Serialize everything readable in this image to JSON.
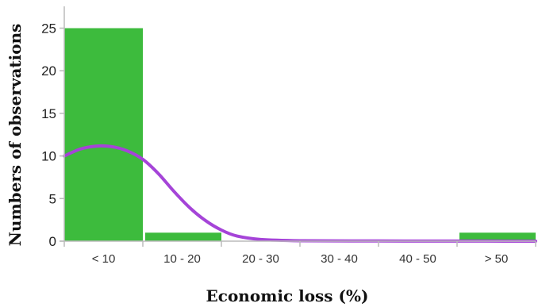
{
  "chart_data": {
    "type": "bar",
    "xlabel": "Economic loss (%)",
    "ylabel": "Numbers of observations",
    "categories": [
      "< 10",
      "10 - 20",
      "20 - 30",
      "30 - 40",
      "40 - 50",
      "> 50"
    ],
    "values": [
      25,
      1,
      0,
      0,
      0,
      1
    ],
    "ylim": [
      0,
      27
    ],
    "yticks": [
      0,
      5,
      10,
      15,
      20,
      25
    ],
    "grid": false,
    "bar_color": "#3dbb3d",
    "curve": {
      "color": "#a544d8",
      "x": [
        0,
        0.2,
        0.4,
        0.6,
        0.8,
        1.0,
        1.2,
        1.4,
        1.6,
        1.8,
        2.0,
        2.2,
        2.5,
        3.0,
        4.0,
        5.0,
        6.0
      ],
      "y": [
        10.0,
        10.8,
        11.15,
        11.1,
        10.6,
        9.6,
        7.9,
        5.8,
        3.9,
        2.4,
        1.3,
        0.6,
        0.2,
        0.05,
        0.02,
        0.01,
        0.0
      ]
    }
  }
}
